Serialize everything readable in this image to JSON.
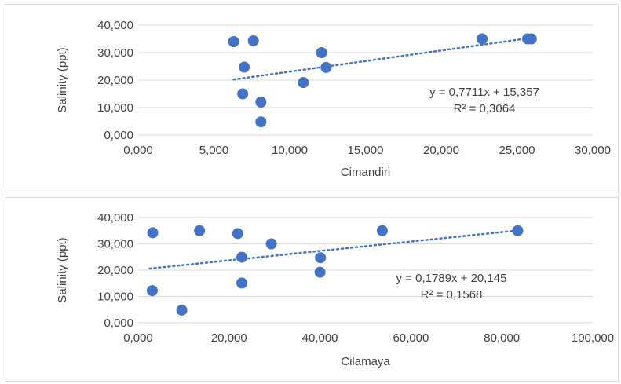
{
  "chart_data": [
    {
      "type": "scatter",
      "xlabel": "Cimandiri",
      "ylabel": "Salinity (ppt)",
      "xlim": [
        0,
        30000
      ],
      "ylim": [
        0,
        40000
      ],
      "x_ticks": [
        "0,000",
        "5,000",
        "10,000",
        "15,000",
        "20,000",
        "25,000",
        "30,000"
      ],
      "y_ticks": [
        "0,000",
        "10,000",
        "20,000",
        "30,000",
        "40,000"
      ],
      "grid": "horizontal",
      "marker_color": "#4472c4",
      "trendline": {
        "style": "dotted",
        "color": "#4472c4",
        "x_range": [
          6300,
          26000
        ],
        "slope": 0.7711,
        "intercept": 15357
      },
      "equation": "y = 0,7711x + 15,357",
      "r_squared": "R² = 0,3064",
      "points": [
        {
          "x": 6300,
          "y": 34000
        },
        {
          "x": 7600,
          "y": 34300
        },
        {
          "x": 7000,
          "y": 24700
        },
        {
          "x": 6900,
          "y": 15000
        },
        {
          "x": 8100,
          "y": 12000
        },
        {
          "x": 8100,
          "y": 4800
        },
        {
          "x": 10900,
          "y": 19100
        },
        {
          "x": 12100,
          "y": 30000
        },
        {
          "x": 12400,
          "y": 24600
        },
        {
          "x": 22700,
          "y": 35000
        },
        {
          "x": 25700,
          "y": 35000
        },
        {
          "x": 25950,
          "y": 35000
        }
      ]
    },
    {
      "type": "scatter",
      "xlabel": "Cilamaya",
      "ylabel": "Salinity (ppt)",
      "xlim": [
        0,
        100000
      ],
      "ylim": [
        0,
        40000
      ],
      "x_ticks": [
        "0,000",
        "20,000",
        "40,000",
        "60,000",
        "80,000",
        "100,000"
      ],
      "y_ticks": [
        "0,000",
        "10,000",
        "20,000",
        "30,000",
        "40,000"
      ],
      "grid": "horizontal",
      "marker_color": "#4472c4",
      "trendline": {
        "style": "dotted",
        "color": "#4472c4",
        "x_range": [
          2500,
          83500
        ],
        "slope": 0.1789,
        "intercept": 20145
      },
      "equation": "y = 0,1789x + 20,145",
      "r_squared": "R² = 0,1568",
      "points": [
        {
          "x": 3200,
          "y": 34200
        },
        {
          "x": 13500,
          "y": 35000
        },
        {
          "x": 21900,
          "y": 33900
        },
        {
          "x": 22800,
          "y": 24900
        },
        {
          "x": 29300,
          "y": 30000
        },
        {
          "x": 3100,
          "y": 12200
        },
        {
          "x": 9600,
          "y": 4800
        },
        {
          "x": 22800,
          "y": 15100
        },
        {
          "x": 40100,
          "y": 24700
        },
        {
          "x": 40000,
          "y": 19200
        },
        {
          "x": 53700,
          "y": 35000
        },
        {
          "x": 83500,
          "y": 35000
        }
      ]
    }
  ]
}
